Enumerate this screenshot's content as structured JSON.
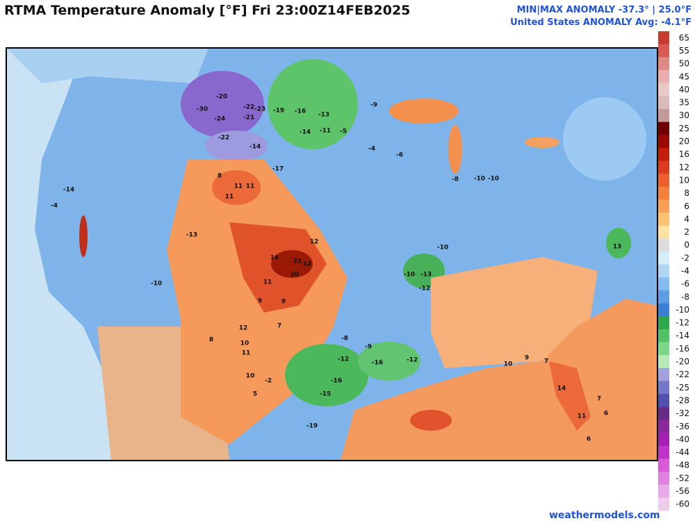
{
  "header": {
    "title": "RTMA Temperature Anomaly [°F]  Fri 23:00Z14FEB2025",
    "min_max": "MIN|MAX ANOMALY -37.3° | 25.0°F",
    "average": "United States ANOMALY Avg: -4.1°F"
  },
  "colorbar": {
    "levels": [
      {
        "value": 65,
        "color": "#c93a2f"
      },
      {
        "value": 55,
        "color": "#d65a52"
      },
      {
        "value": 50,
        "color": "#e08a86"
      },
      {
        "value": 45,
        "color": "#e9aeae"
      },
      {
        "value": 40,
        "color": "#eac8c8"
      },
      {
        "value": 35,
        "color": "#d9baba"
      },
      {
        "value": 30,
        "color": "#c49a9a"
      },
      {
        "value": 25,
        "color": "#6e0000"
      },
      {
        "value": 20,
        "color": "#9a0a00"
      },
      {
        "value": 16,
        "color": "#c21e0c"
      },
      {
        "value": 12,
        "color": "#dc3c1e"
      },
      {
        "value": 10,
        "color": "#ec5e2e"
      },
      {
        "value": 8,
        "color": "#f4803c"
      },
      {
        "value": 6,
        "color": "#f8a056"
      },
      {
        "value": 4,
        "color": "#fbc370"
      },
      {
        "value": 2,
        "color": "#fde2a2"
      },
      {
        "value": 0,
        "color": "#dcdcdc"
      },
      {
        "value": -2,
        "color": "#d6eefa"
      },
      {
        "value": -4,
        "color": "#aed6f4"
      },
      {
        "value": -6,
        "color": "#84bcef"
      },
      {
        "value": -8,
        "color": "#5c9de6"
      },
      {
        "value": -10,
        "color": "#3a7ed8"
      },
      {
        "value": -12,
        "color": "#2ea64a"
      },
      {
        "value": -14,
        "color": "#50c264"
      },
      {
        "value": -16,
        "color": "#7cd888"
      },
      {
        "value": -20,
        "color": "#b6eab6"
      },
      {
        "value": -22,
        "color": "#a0a0dc"
      },
      {
        "value": -25,
        "color": "#7676c8"
      },
      {
        "value": -28,
        "color": "#5050b0"
      },
      {
        "value": -32,
        "color": "#6a2a88"
      },
      {
        "value": -36,
        "color": "#8a2a9c"
      },
      {
        "value": -40,
        "color": "#a422b2"
      },
      {
        "value": -44,
        "color": "#c032c8"
      },
      {
        "value": -48,
        "color": "#d85ad8"
      },
      {
        "value": -52,
        "color": "#e082e0"
      },
      {
        "value": -56,
        "color": "#e8aae8"
      },
      {
        "value": -60,
        "color": "#eeccee"
      }
    ]
  },
  "map": {
    "labels": [
      -30,
      -20,
      -22,
      -23,
      -21,
      -19,
      -16,
      -13,
      -24,
      -22,
      -14,
      -14,
      -11,
      -17,
      16,
      21,
      20,
      12,
      12,
      11,
      9,
      9,
      7,
      12,
      10,
      11,
      10,
      8,
      5,
      -2,
      -12,
      -16,
      -12,
      -16,
      -15,
      -19,
      -8,
      -9,
      11,
      11,
      8,
      11,
      -13,
      -10,
      -14,
      -4,
      13,
      -10,
      -13,
      -12,
      -10,
      11,
      14,
      10,
      9,
      7,
      -10,
      -10,
      -9,
      -5,
      -4,
      -6,
      -8,
      6,
      7,
      6
    ]
  },
  "footer": {
    "credit": "weathermodels.com"
  }
}
